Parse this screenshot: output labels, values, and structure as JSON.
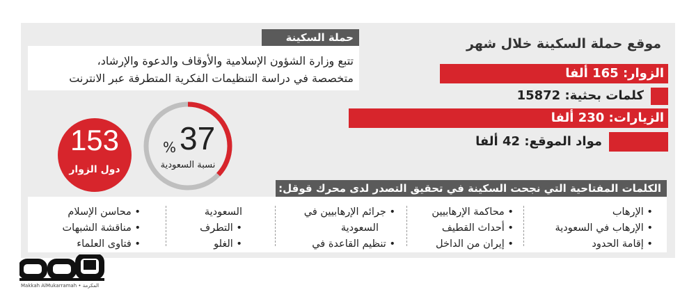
{
  "title": "موقع حملة السكينة خلال شهر",
  "stats": [
    {
      "label": "الزوار: 165 ألفا"
    },
    {
      "label": "كلمات بحثية: 15872"
    },
    {
      "label": "الزيارات: 230 ألفا"
    },
    {
      "label": "مواد الموقع: 42 ألفا"
    }
  ],
  "campaign": {
    "heading": "حملة السكينة",
    "line1": "تتبع وزارة الشؤون الإسلامية والأوقاف والدعوة والإرشاد،",
    "line2": "متخصصة في دراسة التنظيمات الفكرية المتطرفة عبر الانترنت"
  },
  "saudi_share": {
    "value": "37",
    "unit": "%",
    "fraction": 0.37,
    "label": "نسبة السعودية"
  },
  "countries": {
    "value": "153",
    "label": "دول الزوار"
  },
  "keywords": {
    "heading": "الكلمات المفتاحية التي نجحت السكينة في تحقيق التصدر لدى محرك قوقل:",
    "columns": [
      [
        "• الإرهاب",
        "• الإرهاب في السعودية",
        "• إقامة الحدود"
      ],
      [
        "• محاكمة الإرهابيين",
        "• أحداث القطيف",
        "• إيران من الداخل"
      ],
      [
        "• جرائم الإرهابيين في",
        "السعودية",
        "• تنظيم القاعدة في"
      ],
      [
        "السعودية",
        "• التطرف",
        "• الغلو"
      ],
      [
        "• محاسن الإسلام",
        "• مناقشة الشبهات",
        "• فتاوى العلماء"
      ]
    ]
  },
  "logo": {
    "text": "مكة",
    "caption": "Makkah AlMukarramah • المكرمة"
  }
}
